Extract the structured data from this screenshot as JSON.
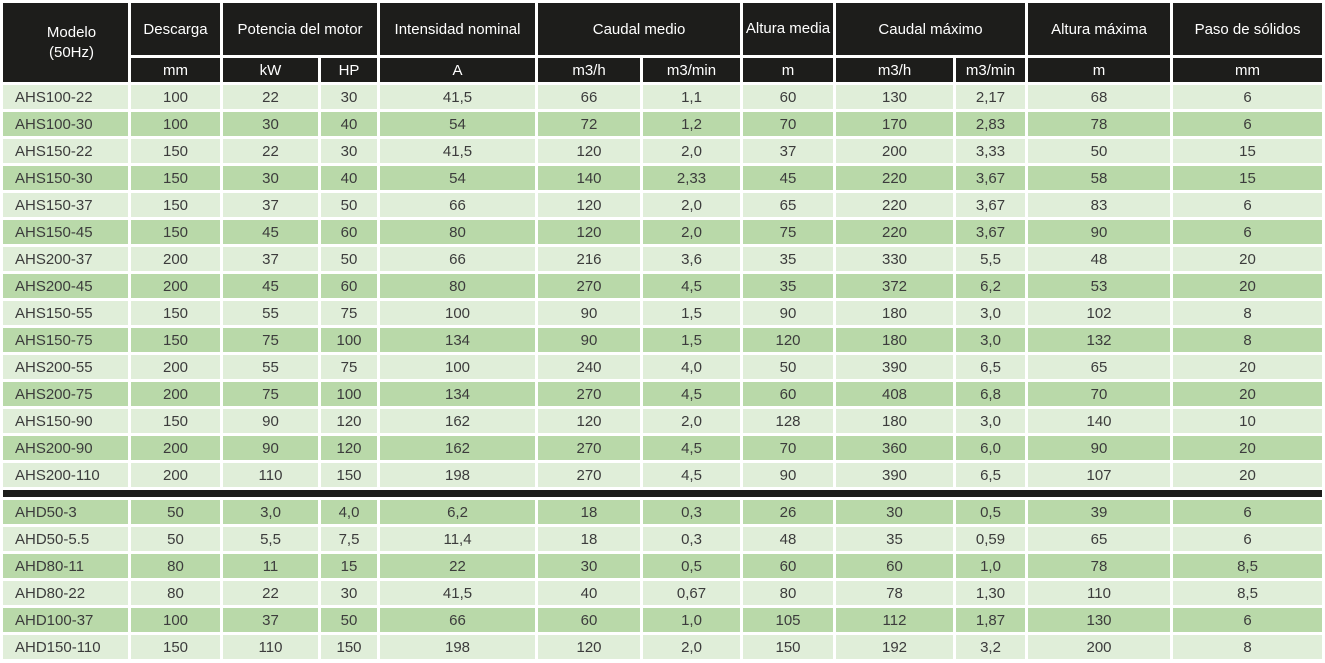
{
  "table": {
    "header": {
      "model_line1": "Modelo",
      "model_line2": "(50Hz)",
      "groups": [
        {
          "label": "Descarga"
        },
        {
          "label": "Potencia del motor"
        },
        {
          "label": "Intensidad nominal"
        },
        {
          "label": "Caudal medio"
        },
        {
          "label": "Altura media"
        },
        {
          "label": "Caudal máximo"
        },
        {
          "label": "Altura máxima"
        },
        {
          "label": "Paso de sólidos"
        }
      ],
      "units": [
        "mm",
        "kW",
        "HP",
        "A",
        "m3/h",
        "m3/min",
        "m",
        "m3/h",
        "m3/min",
        "m",
        "mm"
      ]
    },
    "sections": [
      {
        "name": "AHS",
        "rows": [
          {
            "model": "AHS100-22",
            "values": [
              "100",
              "22",
              "30",
              "41,5",
              "66",
              "1,1",
              "60",
              "130",
              "2,17",
              "68",
              "6"
            ]
          },
          {
            "model": "AHS100-30",
            "values": [
              "100",
              "30",
              "40",
              "54",
              "72",
              "1,2",
              "70",
              "170",
              "2,83",
              "78",
              "6"
            ]
          },
          {
            "model": "AHS150-22",
            "values": [
              "150",
              "22",
              "30",
              "41,5",
              "120",
              "2,0",
              "37",
              "200",
              "3,33",
              "50",
              "15"
            ]
          },
          {
            "model": "AHS150-30",
            "values": [
              "150",
              "30",
              "40",
              "54",
              "140",
              "2,33",
              "45",
              "220",
              "3,67",
              "58",
              "15"
            ]
          },
          {
            "model": "AHS150-37",
            "values": [
              "150",
              "37",
              "50",
              "66",
              "120",
              "2,0",
              "65",
              "220",
              "3,67",
              "83",
              "6"
            ]
          },
          {
            "model": "AHS150-45",
            "values": [
              "150",
              "45",
              "60",
              "80",
              "120",
              "2,0",
              "75",
              "220",
              "3,67",
              "90",
              "6"
            ]
          },
          {
            "model": "AHS200-37",
            "values": [
              "200",
              "37",
              "50",
              "66",
              "216",
              "3,6",
              "35",
              "330",
              "5,5",
              "48",
              "20"
            ]
          },
          {
            "model": "AHS200-45",
            "values": [
              "200",
              "45",
              "60",
              "80",
              "270",
              "4,5",
              "35",
              "372",
              "6,2",
              "53",
              "20"
            ]
          },
          {
            "model": "AHS150-55",
            "values": [
              "150",
              "55",
              "75",
              "100",
              "90",
              "1,5",
              "90",
              "180",
              "3,0",
              "102",
              "8"
            ]
          },
          {
            "model": "AHS150-75",
            "values": [
              "150",
              "75",
              "100",
              "134",
              "90",
              "1,5",
              "120",
              "180",
              "3,0",
              "132",
              "8"
            ]
          },
          {
            "model": "AHS200-55",
            "values": [
              "200",
              "55",
              "75",
              "100",
              "240",
              "4,0",
              "50",
              "390",
              "6,5",
              "65",
              "20"
            ]
          },
          {
            "model": "AHS200-75",
            "values": [
              "200",
              "75",
              "100",
              "134",
              "270",
              "4,5",
              "60",
              "408",
              "6,8",
              "70",
              "20"
            ]
          },
          {
            "model": "AHS150-90",
            "values": [
              "150",
              "90",
              "120",
              "162",
              "120",
              "2,0",
              "128",
              "180",
              "3,0",
              "140",
              "10"
            ]
          },
          {
            "model": "AHS200-90",
            "values": [
              "200",
              "90",
              "120",
              "162",
              "270",
              "4,5",
              "70",
              "360",
              "6,0",
              "90",
              "20"
            ]
          },
          {
            "model": "AHS200-110",
            "values": [
              "200",
              "110",
              "150",
              "198",
              "270",
              "4,5",
              "90",
              "390",
              "6,5",
              "107",
              "20"
            ]
          }
        ]
      },
      {
        "name": "AHD",
        "rows": [
          {
            "model": "AHD50-3",
            "values": [
              "50",
              "3,0",
              "4,0",
              "6,2",
              "18",
              "0,3",
              "26",
              "30",
              "0,5",
              "39",
              "6"
            ]
          },
          {
            "model": "AHD50-5.5",
            "values": [
              "50",
              "5,5",
              "7,5",
              "11,4",
              "18",
              "0,3",
              "48",
              "35",
              "0,59",
              "65",
              "6"
            ]
          },
          {
            "model": "AHD80-11",
            "values": [
              "80",
              "11",
              "15",
              "22",
              "30",
              "0,5",
              "60",
              "60",
              "1,0",
              "78",
              "8,5"
            ]
          },
          {
            "model": "AHD80-22",
            "values": [
              "80",
              "22",
              "30",
              "41,5",
              "40",
              "0,67",
              "80",
              "78",
              "1,30",
              "110",
              "8,5"
            ]
          },
          {
            "model": "AHD100-37",
            "values": [
              "100",
              "37",
              "50",
              "66",
              "60",
              "1,0",
              "105",
              "112",
              "1,87",
              "130",
              "6"
            ]
          },
          {
            "model": "AHD150-110",
            "values": [
              "150",
              "110",
              "150",
              "198",
              "120",
              "2,0",
              "150",
              "192",
              "3,2",
              "200",
              "8"
            ]
          }
        ]
      }
    ]
  },
  "colors": {
    "header_bg": "#1d1d1b",
    "header_text": "#ffffff",
    "row_light": "#e0eed9",
    "row_dark": "#b9d9a9",
    "cell_text": "#3c3c3c",
    "gridline": "#ffffff",
    "section_separator": "#1d1d1b"
  }
}
